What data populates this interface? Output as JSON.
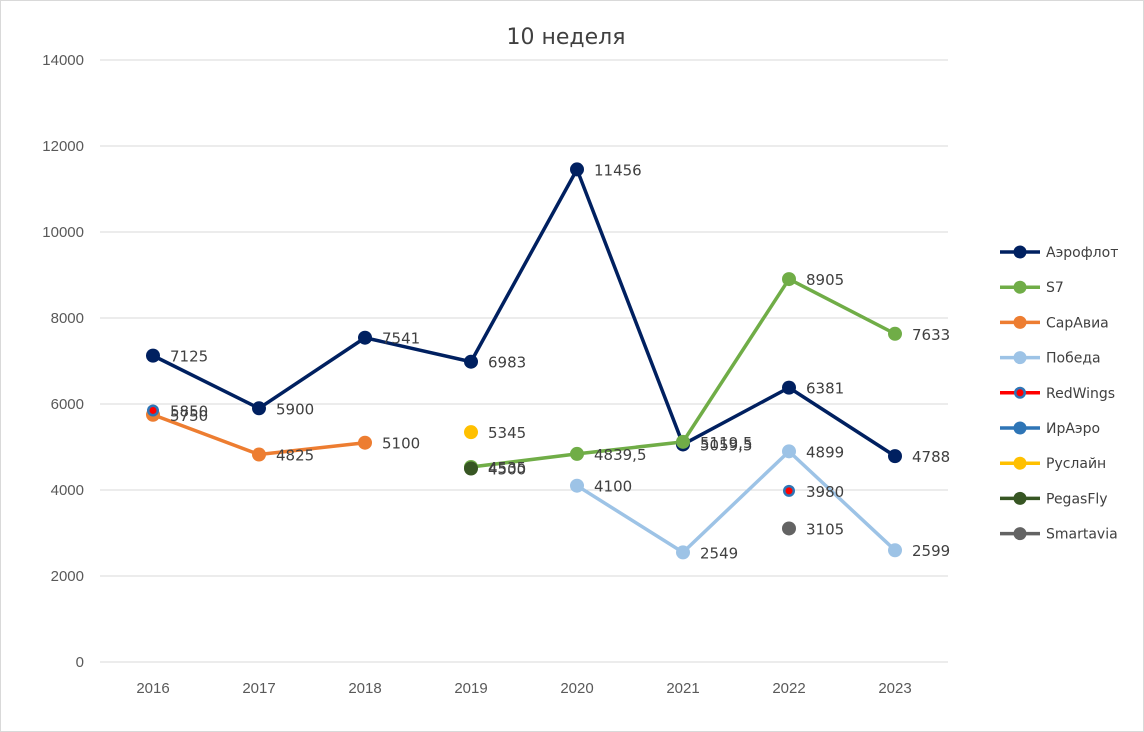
{
  "chart_data": {
    "type": "line",
    "title": "10 неделя",
    "xlabel": "",
    "ylabel": "",
    "categories": [
      "2016",
      "2017",
      "2018",
      "2019",
      "2020",
      "2021",
      "2022",
      "2023"
    ],
    "ylim": [
      0,
      14000
    ],
    "yticks": [
      0,
      2000,
      4000,
      6000,
      8000,
      10000,
      12000,
      14000
    ],
    "ytick_labels": [
      "0",
      "2000",
      "4000",
      "6000",
      "8000",
      "10000",
      "12000",
      "14000"
    ],
    "grid": true,
    "legend_position": "right",
    "series": [
      {
        "name": "Аэрофлот",
        "color": "#002060",
        "values": [
          7125,
          5900,
          7541,
          6983,
          11456,
          5059.5,
          6381,
          4788
        ],
        "labels": [
          "7125",
          "5900",
          "7541",
          "6983",
          "11456",
          "5059,5",
          "6381",
          "4788"
        ]
      },
      {
        "name": "S7",
        "color": "#70ad47",
        "values": [
          null,
          null,
          null,
          4535,
          4839.5,
          5119.5,
          8905,
          7633
        ],
        "labels": [
          null,
          null,
          null,
          "4535",
          "4839,5",
          "5119,5",
          "8905",
          "7633"
        ]
      },
      {
        "name": "СарАвиа",
        "color": "#ed7d31",
        "values": [
          5750,
          4825,
          5100,
          null,
          null,
          null,
          null,
          null
        ],
        "labels": [
          "5750",
          "4825",
          "5100",
          null,
          null,
          null,
          null,
          null
        ]
      },
      {
        "name": "Победа",
        "color": "#9dc3e6",
        "values": [
          null,
          null,
          null,
          null,
          4100,
          2549,
          4899,
          2599
        ],
        "labels": [
          null,
          null,
          null,
          null,
          "4100",
          "2549",
          "4899",
          "2599"
        ]
      },
      {
        "name": "RedWings",
        "color": "#ff0000",
        "values": [
          5850,
          null,
          null,
          null,
          null,
          null,
          3980,
          null
        ],
        "labels": [
          "5850",
          null,
          null,
          null,
          null,
          null,
          "3980",
          null
        ]
      },
      {
        "name": "ИрАэро",
        "color": "#2e75b6",
        "values": [
          null,
          null,
          null,
          null,
          null,
          null,
          null,
          null
        ],
        "labels": [
          null,
          null,
          null,
          null,
          null,
          null,
          null,
          null
        ]
      },
      {
        "name": "Руслайн",
        "color": "#ffc000",
        "values": [
          null,
          null,
          null,
          5345,
          null,
          null,
          null,
          null
        ],
        "labels": [
          null,
          null,
          null,
          "5345",
          null,
          null,
          null,
          null
        ]
      },
      {
        "name": "PegasFly",
        "color": "#375623",
        "values": [
          null,
          null,
          null,
          4500,
          null,
          null,
          null,
          null
        ],
        "labels": [
          null,
          null,
          null,
          "4500",
          null,
          null,
          null,
          null
        ]
      },
      {
        "name": "Smartavia",
        "color": "#636363",
        "values": [
          null,
          null,
          null,
          null,
          null,
          null,
          3105,
          null
        ],
        "labels": [
          null,
          null,
          null,
          null,
          null,
          null,
          "3105",
          null
        ]
      }
    ]
  }
}
